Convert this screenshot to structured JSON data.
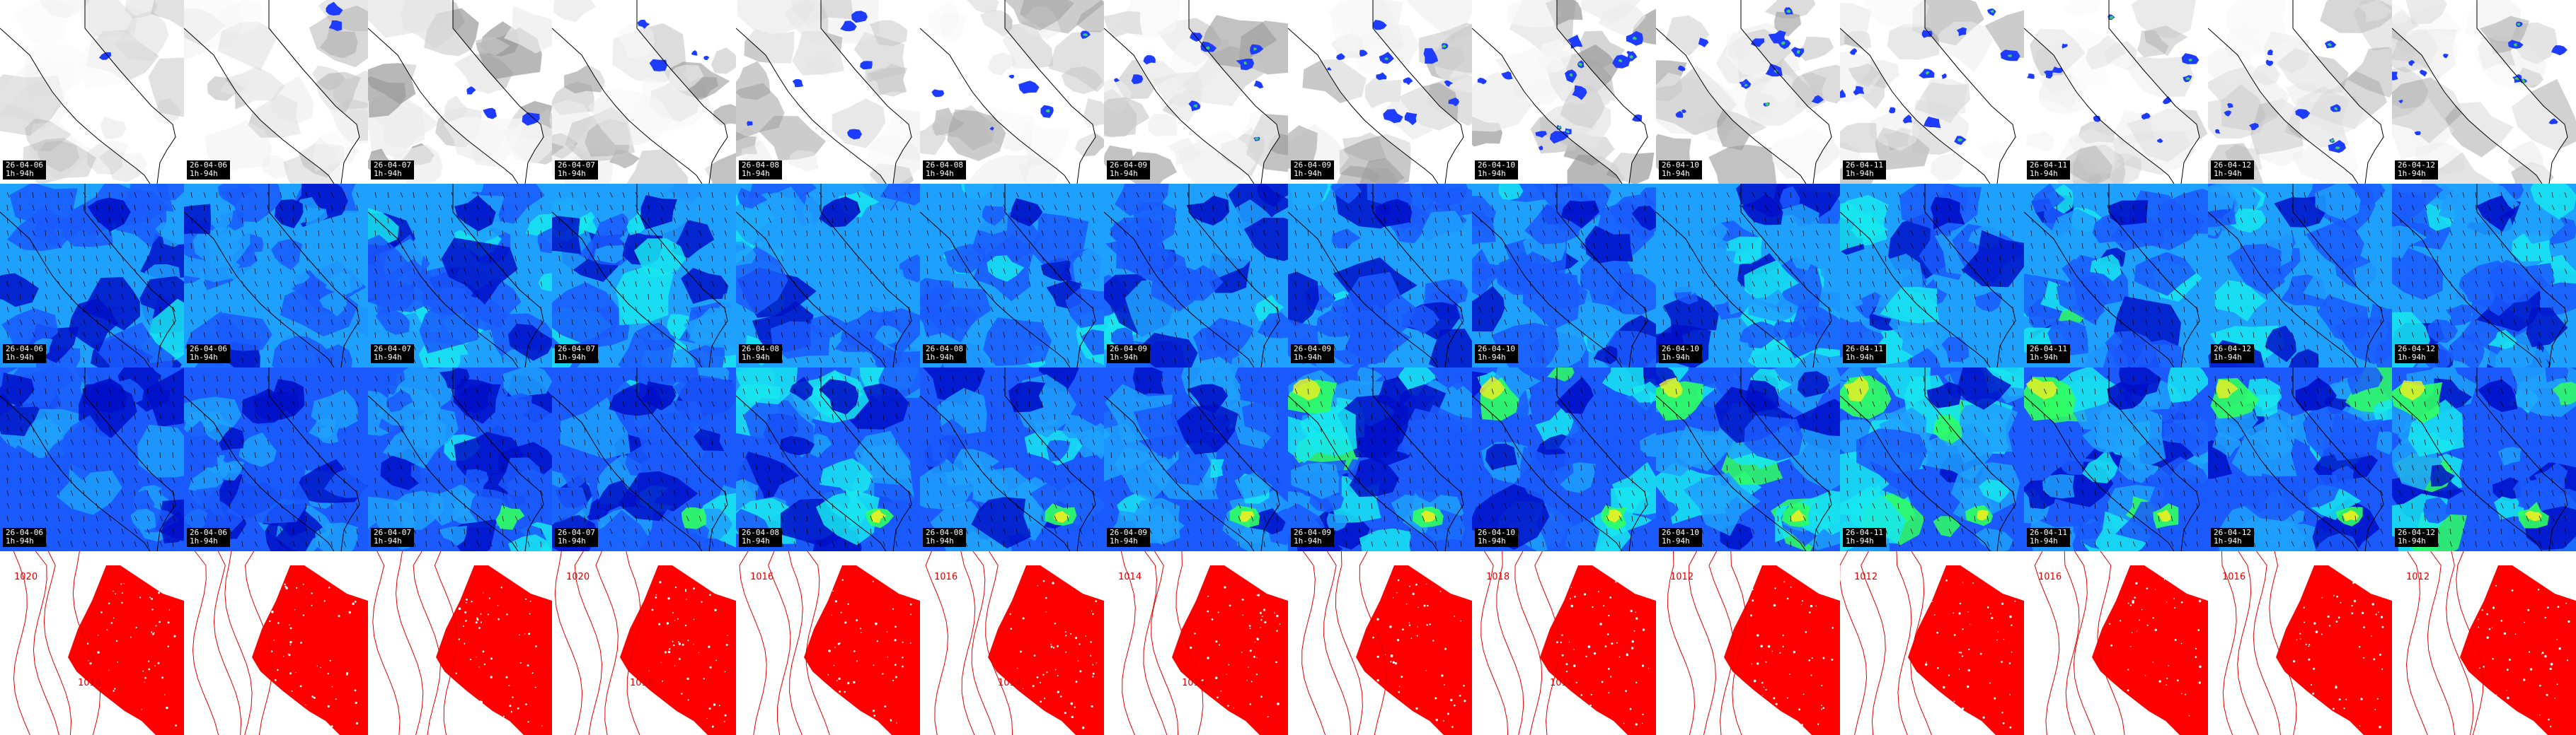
{
  "row_types": [
    "clouds",
    "wind-100m",
    "wind-10m",
    "pressure"
  ],
  "panels": [
    {
      "date": "26-04-06",
      "run": "1h-94h"
    },
    {
      "date": "26-04-06",
      "run": "1h-94h"
    },
    {
      "date": "26-04-07",
      "run": "1h-94h"
    },
    {
      "date": "26-04-07",
      "run": "1h-94h"
    },
    {
      "date": "26-04-08",
      "run": "1h-94h"
    },
    {
      "date": "26-04-08",
      "run": "1h-94h"
    },
    {
      "date": "26-04-09",
      "run": "1h-94h"
    },
    {
      "date": "26-04-09",
      "run": "1h-94h"
    },
    {
      "date": "26-04-10",
      "run": "1h-94h"
    },
    {
      "date": "26-04-10",
      "run": "1h-94h"
    },
    {
      "date": "26-04-11",
      "run": "1h-94h"
    },
    {
      "date": "26-04-11",
      "run": "1h-94h"
    },
    {
      "date": "26-04-12",
      "run": "1h-94h"
    },
    {
      "date": "26-04-12",
      "run": "1h-94h"
    }
  ],
  "isobar_labels": [
    [
      "1020",
      "1016"
    ],
    [],
    [],
    [
      "1020",
      "1016"
    ],
    [
      "1016"
    ],
    [
      "1016",
      "1014"
    ],
    [
      "1014",
      "1016"
    ],
    [],
    [
      "1018",
      "1012"
    ],
    [
      "1012"
    ],
    [
      "1012"
    ],
    [
      "1016"
    ],
    [
      "1016"
    ],
    [
      "1012"
    ]
  ],
  "colors": {
    "cloud_dark": "#9a9a9a",
    "cloud_mid": "#c4c4c4",
    "cloud_light": "#ececec",
    "precip_blue": "#1e3cff",
    "precip_green": "#3cd060",
    "wind_navy": "#0010c8",
    "wind_blue": "#1a5aff",
    "wind_sky": "#1ea0ff",
    "wind_cyan": "#18e8f0",
    "wind_green": "#30ff60",
    "wind_yellow": "#f0f020",
    "isobar": "#e00000",
    "land_red": "#ff0000",
    "border": "#000000"
  }
}
